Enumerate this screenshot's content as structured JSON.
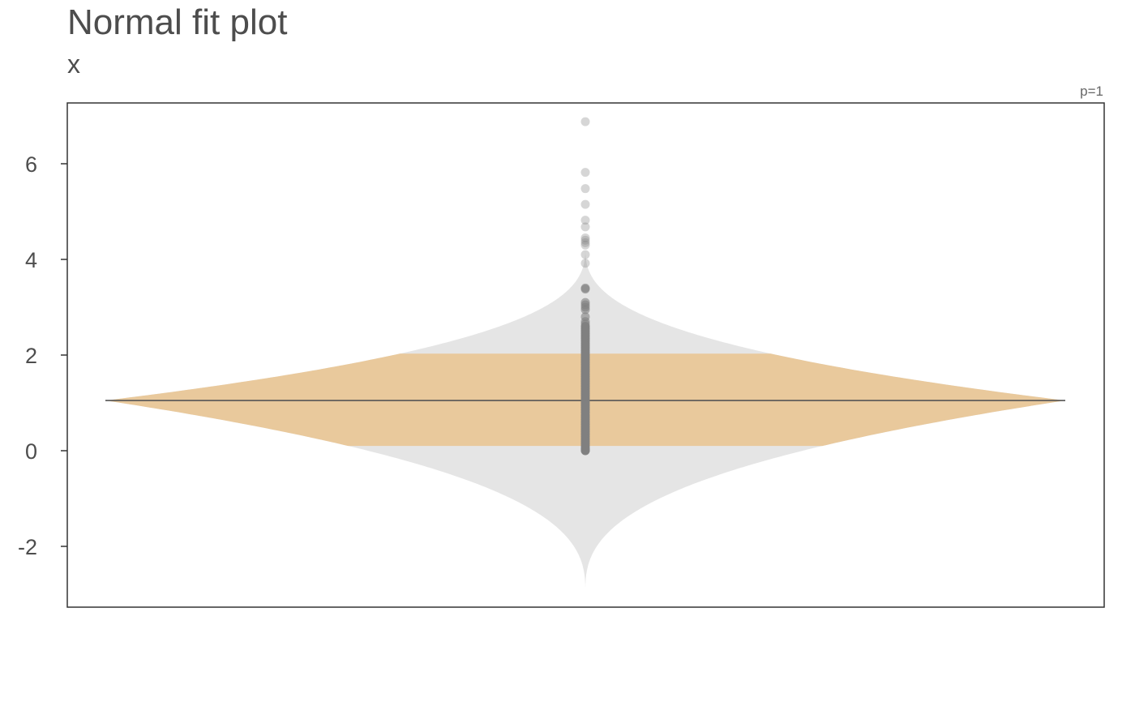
{
  "chart_data": {
    "type": "violin",
    "title": "Normal fit plot",
    "subtitle": "x",
    "annotation": "p=1",
    "ylim": [
      -3.2,
      7.2
    ],
    "y_ticks": [
      -2,
      0,
      2,
      4,
      6
    ],
    "y_tick_labels": [
      "-2",
      "0",
      "2",
      "4",
      "6"
    ],
    "fit": {
      "center": 1.05,
      "band_low": 0.1,
      "band_high": 2.03,
      "tail_min": -2.95,
      "tail_max": 4.25
    },
    "points": {
      "y": [
        6.88,
        5.82,
        5.48,
        5.15,
        4.82,
        4.68,
        4.45,
        4.4,
        4.35,
        4.3,
        4.1,
        3.92,
        3.4,
        3.38,
        3.1,
        3.05,
        3.0,
        2.95,
        2.8,
        2.7,
        2.65,
        2.6,
        2.55,
        2.5,
        2.45,
        2.4,
        2.35,
        2.3,
        2.25,
        2.2,
        2.15,
        2.1,
        2.05,
        2.0,
        1.95,
        1.9,
        1.85,
        1.8,
        1.75,
        1.7,
        1.65,
        1.6,
        1.55,
        1.5,
        1.45,
        1.4,
        1.35,
        1.3,
        1.25,
        1.2,
        1.15,
        1.1,
        1.05,
        1.0,
        0.95,
        0.9,
        0.85,
        0.8,
        0.75,
        0.7,
        0.65,
        0.6,
        0.55,
        0.5,
        0.45,
        0.4,
        0.35,
        0.3,
        0.25,
        0.2,
        0.15,
        0.1,
        0.05,
        0.02,
        0.0
      ]
    },
    "colors": {
      "violin": "#e5e5e5",
      "band": "#e9c99c",
      "center_line": "#555555",
      "points": "#808080",
      "frame": "#333333"
    },
    "grid": false,
    "legend": "none"
  }
}
